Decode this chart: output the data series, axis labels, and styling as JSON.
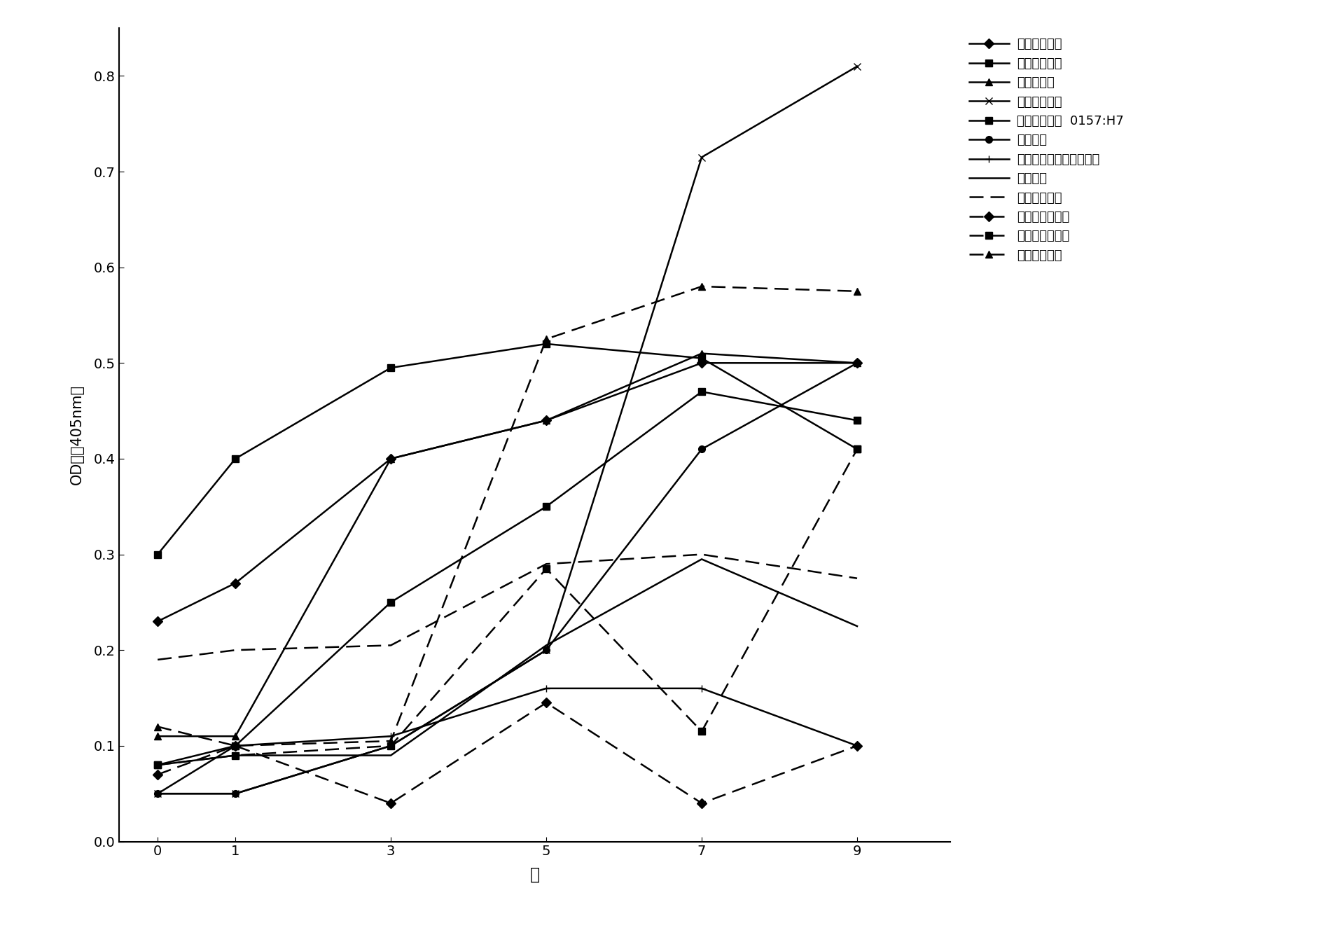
{
  "x": [
    0,
    1,
    3,
    5,
    7,
    9
  ],
  "series": [
    {
      "label": "喹水气单胞菌",
      "values": [
        0.23,
        0.27,
        0.4,
        0.44,
        0.5,
        0.5
      ],
      "linestyle": "-",
      "marker": "D",
      "dashes": null
    },
    {
      "label": "蜡状芽孢杆菌",
      "values": [
        0.3,
        0.4,
        0.495,
        0.52,
        0.505,
        0.41
      ],
      "linestyle": "-",
      "marker": "s",
      "dashes": null
    },
    {
      "label": "空肠弯曲菌",
      "values": [
        0.11,
        0.11,
        0.4,
        0.44,
        0.51,
        0.5
      ],
      "linestyle": "-",
      "marker": "^",
      "dashes": null
    },
    {
      "label": "产气苚膜梭菌",
      "values": [
        0.05,
        0.05,
        0.1,
        0.2,
        0.715,
        0.81
      ],
      "linestyle": "-",
      "marker": "x",
      "dashes": null
    },
    {
      "label": "大肠埃希氏菌  0157:H7",
      "values": [
        0.08,
        0.1,
        0.25,
        0.35,
        0.47,
        0.44
      ],
      "linestyle": "-",
      "marker": "s",
      "dashes": null
    },
    {
      "label": "乳酸杆菌",
      "values": [
        0.05,
        0.05,
        0.1,
        0.2,
        0.41,
        0.5
      ],
      "linestyle": "-",
      "marker": "o",
      "dashes": null
    },
    {
      "label": "单核细胞增生李斯特氏菌",
      "values": [
        0.05,
        0.1,
        0.11,
        0.16,
        0.16,
        0.1
      ],
      "linestyle": "-",
      "marker": "+",
      "dashes": null
    },
    {
      "label": "酰酒酵母",
      "values": [
        0.08,
        0.09,
        0.09,
        0.205,
        0.295,
        0.225
      ],
      "linestyle": "-",
      "marker": null,
      "dashes": null
    },
    {
      "label": "肠炎沙门氏菌",
      "values": [
        0.19,
        0.2,
        0.205,
        0.29,
        0.3,
        0.275
      ],
      "linestyle": "--",
      "marker": null,
      "dashes": [
        8,
        4
      ]
    },
    {
      "label": "鼠伤寡沙门氏菌",
      "values": [
        0.07,
        0.1,
        0.04,
        0.145,
        0.04,
        0.1
      ],
      "linestyle": "--",
      "marker": "D",
      "dashes": [
        8,
        4
      ]
    },
    {
      "label": "金黄色葡萄球菌",
      "values": [
        0.08,
        0.09,
        0.1,
        0.285,
        0.115,
        0.41
      ],
      "linestyle": "--",
      "marker": "s",
      "dashes": [
        8,
        4
      ]
    },
    {
      "label": "表皮葡萄球菌",
      "values": [
        0.12,
        0.1,
        0.105,
        0.525,
        0.58,
        0.575
      ],
      "linestyle": "--",
      "marker": "^",
      "dashes": [
        8,
        4
      ]
    }
  ],
  "xlabel": "周",
  "ylabel": "OD値（405nm）",
  "ylim": [
    0,
    0.85
  ],
  "yticks": [
    0,
    0.1,
    0.2,
    0.3,
    0.4,
    0.5,
    0.6,
    0.7,
    0.8
  ],
  "xticks": [
    0,
    1,
    3,
    5,
    7,
    9
  ],
  "background_color": "#ffffff",
  "linewidth": 1.8,
  "markersize": 7
}
